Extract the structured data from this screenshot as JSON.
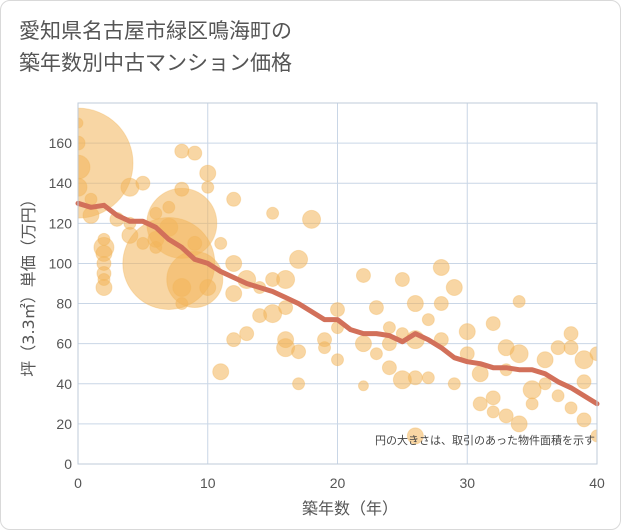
{
  "header": {
    "title_line1": "愛知県名古屋市緑区鳴海町の",
    "title_line2": "築年数別中古マンション価格"
  },
  "chart_data": {
    "type": "scatter",
    "title": "愛知県名古屋市緑区鳴海町の築年数別中古マンション価格",
    "xlabel": "築年数（年）",
    "ylabel": "坪（3.3㎡）単価（万円）",
    "xlim": [
      0,
      40
    ],
    "ylim": [
      0,
      180
    ],
    "xticks": [
      0,
      10,
      20,
      30,
      40
    ],
    "yticks": [
      0,
      20,
      40,
      60,
      80,
      100,
      120,
      140,
      160
    ],
    "grid": true,
    "annotation": "円の大きさは、取引のあった物件面積を示す",
    "colors": {
      "bubble": "#f2b45a",
      "trend": "#d2705a",
      "grid": "#c9d6e6",
      "frame": "#bfcbd9"
    },
    "series": [
      {
        "kind": "bubble",
        "points": [
          [
            0,
            150,
            55
          ],
          [
            0,
            148,
            12
          ],
          [
            0,
            138,
            9
          ],
          [
            0,
            160,
            7
          ],
          [
            0,
            170,
            5
          ],
          [
            1,
            124,
            8
          ],
          [
            1,
            132,
            6
          ],
          [
            2,
            108,
            10
          ],
          [
            2,
            105,
            8
          ],
          [
            2,
            100,
            7
          ],
          [
            2,
            95,
            7
          ],
          [
            2,
            92,
            6
          ],
          [
            2,
            88,
            8
          ],
          [
            2,
            112,
            6
          ],
          [
            3,
            122,
            7
          ],
          [
            4,
            138,
            9
          ],
          [
            4,
            114,
            8
          ],
          [
            4,
            120,
            6
          ],
          [
            5,
            140,
            7
          ],
          [
            5,
            110,
            6
          ],
          [
            6,
            125,
            6
          ],
          [
            6,
            112,
            8
          ],
          [
            6,
            108,
            6
          ],
          [
            7,
            100,
            46
          ],
          [
            7,
            118,
            9
          ],
          [
            7,
            128,
            6
          ],
          [
            8,
            120,
            35
          ],
          [
            8,
            156,
            7
          ],
          [
            8,
            137,
            7
          ],
          [
            8,
            88,
            9
          ],
          [
            8,
            80,
            6
          ],
          [
            9,
            155,
            7
          ],
          [
            9,
            92,
            28
          ],
          [
            9,
            110,
            7
          ],
          [
            10,
            145,
            8
          ],
          [
            10,
            138,
            6
          ],
          [
            10,
            88,
            8
          ],
          [
            11,
            110,
            6
          ],
          [
            11,
            46,
            8
          ],
          [
            12,
            132,
            7
          ],
          [
            12,
            100,
            8
          ],
          [
            12,
            85,
            8
          ],
          [
            12,
            62,
            7
          ],
          [
            13,
            65,
            7
          ],
          [
            13,
            92,
            9
          ],
          [
            14,
            74,
            7
          ],
          [
            14,
            88,
            6
          ],
          [
            15,
            125,
            6
          ],
          [
            15,
            75,
            9
          ],
          [
            15,
            92,
            7
          ],
          [
            16,
            92,
            9
          ],
          [
            16,
            78,
            7
          ],
          [
            16,
            62,
            8
          ],
          [
            16,
            58,
            9
          ],
          [
            17,
            102,
            9
          ],
          [
            17,
            56,
            7
          ],
          [
            17,
            40,
            6
          ],
          [
            18,
            122,
            9
          ],
          [
            19,
            62,
            7
          ],
          [
            19,
            58,
            6
          ],
          [
            20,
            77,
            7
          ],
          [
            20,
            68,
            6
          ],
          [
            20,
            52,
            6
          ],
          [
            22,
            94,
            7
          ],
          [
            22,
            60,
            8
          ],
          [
            22,
            39,
            5
          ],
          [
            23,
            78,
            7
          ],
          [
            23,
            55,
            6
          ],
          [
            24,
            68,
            6
          ],
          [
            24,
            48,
            7
          ],
          [
            24,
            60,
            7
          ],
          [
            25,
            92,
            7
          ],
          [
            25,
            65,
            6
          ],
          [
            25,
            42,
            9
          ],
          [
            26,
            80,
            8
          ],
          [
            26,
            62,
            9
          ],
          [
            26,
            43,
            7
          ],
          [
            26,
            14,
            8
          ],
          [
            27,
            72,
            6
          ],
          [
            27,
            43,
            6
          ],
          [
            28,
            98,
            8
          ],
          [
            28,
            62,
            7
          ],
          [
            28,
            80,
            7
          ],
          [
            29,
            88,
            8
          ],
          [
            29,
            40,
            6
          ],
          [
            30,
            66,
            8
          ],
          [
            30,
            55,
            7
          ],
          [
            31,
            30,
            7
          ],
          [
            31,
            45,
            8
          ],
          [
            32,
            70,
            7
          ],
          [
            32,
            33,
            7
          ],
          [
            32,
            26,
            6
          ],
          [
            33,
            58,
            8
          ],
          [
            33,
            47,
            6
          ],
          [
            33,
            24,
            7
          ],
          [
            34,
            81,
            6
          ],
          [
            34,
            55,
            9
          ],
          [
            34,
            20,
            8
          ],
          [
            35,
            37,
            9
          ],
          [
            35,
            30,
            6
          ],
          [
            36,
            52,
            8
          ],
          [
            36,
            40,
            6
          ],
          [
            37,
            58,
            7
          ],
          [
            37,
            34,
            6
          ],
          [
            38,
            65,
            7
          ],
          [
            38,
            58,
            7
          ],
          [
            38,
            28,
            6
          ],
          [
            39,
            52,
            9
          ],
          [
            39,
            41,
            7
          ],
          [
            39,
            22,
            7
          ],
          [
            40,
            55,
            7
          ],
          [
            40,
            14,
            6
          ]
        ]
      },
      {
        "kind": "trend",
        "points": [
          [
            0,
            130
          ],
          [
            1,
            128
          ],
          [
            2,
            129
          ],
          [
            3,
            124
          ],
          [
            4,
            121
          ],
          [
            5,
            121
          ],
          [
            6,
            118
          ],
          [
            7,
            112
          ],
          [
            8,
            108
          ],
          [
            9,
            102
          ],
          [
            10,
            100
          ],
          [
            11,
            96
          ],
          [
            12,
            93
          ],
          [
            13,
            90
          ],
          [
            14,
            88
          ],
          [
            15,
            86
          ],
          [
            16,
            83
          ],
          [
            17,
            80
          ],
          [
            18,
            76
          ],
          [
            19,
            72
          ],
          [
            20,
            72
          ],
          [
            21,
            67
          ],
          [
            22,
            65
          ],
          [
            23,
            65
          ],
          [
            24,
            64
          ],
          [
            25,
            61
          ],
          [
            26,
            65
          ],
          [
            27,
            62
          ],
          [
            28,
            58
          ],
          [
            29,
            53
          ],
          [
            30,
            51
          ],
          [
            31,
            50
          ],
          [
            32,
            48
          ],
          [
            33,
            48
          ],
          [
            34,
            47
          ],
          [
            35,
            47
          ],
          [
            36,
            45
          ],
          [
            37,
            41
          ],
          [
            38,
            38
          ],
          [
            39,
            34
          ],
          [
            40,
            30
          ]
        ]
      }
    ]
  }
}
